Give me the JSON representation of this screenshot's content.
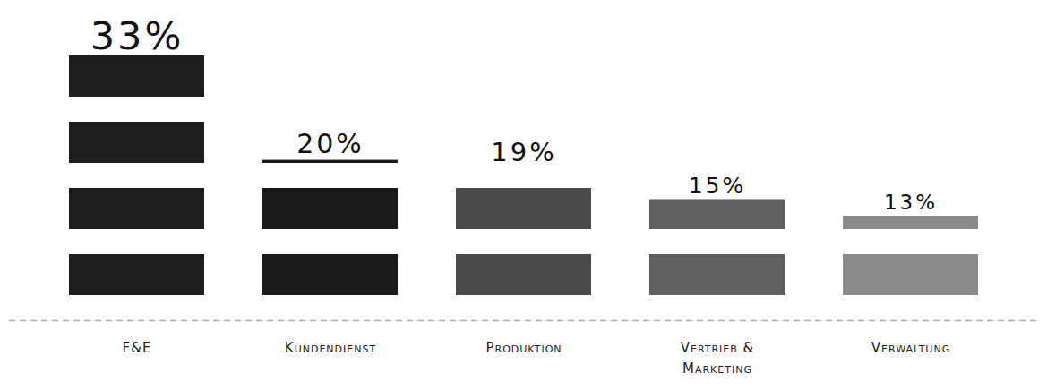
{
  "chart_data": {
    "type": "bar",
    "categories": [
      "F&E",
      "Kundendienst",
      "Produktion",
      "Vertrieb & Marketing",
      "Verwaltung"
    ],
    "values": [
      33,
      20,
      19,
      15,
      13
    ],
    "value_labels": [
      "33%",
      "20%",
      "19%",
      "15%",
      "13%"
    ],
    "data_labels": true,
    "tick_labels": "x",
    "colors": [
      "#1e1e1e",
      "#1a1a1a",
      "#4a4a4a",
      "#5e5e5e",
      "#8a8a8a"
    ]
  }
}
